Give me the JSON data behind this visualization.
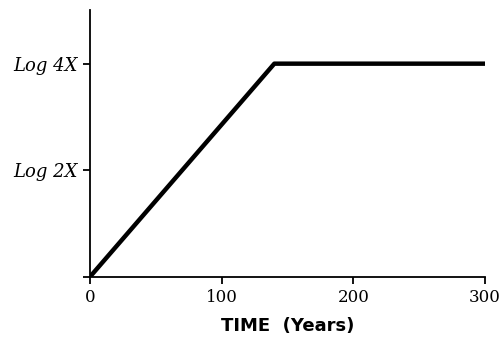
{
  "title": "",
  "xlabel": "TIME  (Years)",
  "ylabel": "",
  "xlim": [
    0,
    300
  ],
  "ylim_min": 0.0,
  "ylim_max": 1.25,
  "x_ticks": [
    0,
    100,
    200,
    300
  ],
  "ytick_positions": [
    0.0,
    0.5,
    1.0
  ],
  "ytick_labels": [
    "",
    "Log 2X",
    "Log 4X"
  ],
  "line_x": [
    0,
    140,
    300
  ],
  "line_y": [
    0.0,
    1.0,
    1.0
  ],
  "line_color": "#000000",
  "line_width": 3.2,
  "background_color": "#ffffff",
  "xlabel_fontsize": 13,
  "ytick_fontsize": 13,
  "xtick_fontsize": 12
}
